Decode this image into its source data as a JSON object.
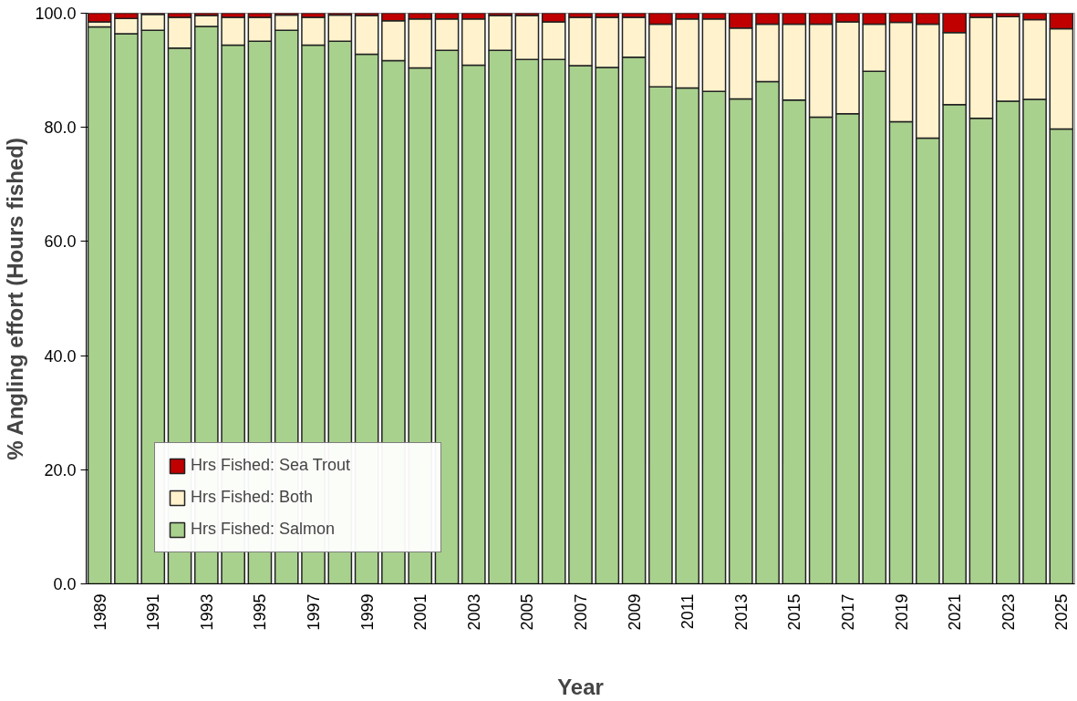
{
  "chart_data": {
    "type": "bar",
    "stacked": true,
    "xlabel": "Year",
    "ylabel": "% Angling effort (Hours fished)",
    "categories": [
      "1989",
      null,
      "1991",
      null,
      "1993",
      null,
      "1995",
      null,
      "1997",
      null,
      "1999",
      null,
      "2001",
      null,
      "2003",
      null,
      "2005",
      null,
      "2007",
      null,
      "2009",
      null,
      "2011",
      null,
      "2013",
      null,
      "2015",
      null,
      "2017",
      null,
      "2019",
      null,
      "2021",
      null,
      "2023",
      null,
      "2025"
    ],
    "series": [
      {
        "name": "Hrs Fished: Salmon",
        "color": "#a9d18e",
        "values": [
          97.6,
          96.4,
          97.0,
          93.9,
          97.7,
          94.4,
          95.1,
          97.0,
          94.4,
          95.1,
          92.8,
          91.7,
          90.4,
          93.5,
          90.9,
          93.5,
          91.9,
          91.9,
          90.8,
          90.5,
          92.3,
          87.1,
          86.9,
          86.3,
          85.0,
          88.0,
          84.8,
          81.8,
          82.4,
          89.8,
          81.0,
          78.1,
          84.0,
          81.6,
          84.6,
          84.9,
          79.7
        ]
      },
      {
        "name": "Hrs Fished: Both",
        "color": "#fff2cc",
        "values": [
          0.9,
          2.7,
          2.8,
          5.4,
          1.9,
          4.9,
          4.2,
          2.7,
          4.9,
          4.6,
          6.8,
          7.0,
          8.6,
          5.5,
          8.1,
          6.1,
          7.7,
          6.6,
          8.5,
          8.8,
          7.0,
          11.0,
          12.1,
          12.7,
          12.4,
          10.1,
          13.3,
          16.3,
          16.1,
          8.3,
          17.4,
          20.0,
          12.6,
          17.7,
          14.8,
          14.0,
          17.6
        ]
      },
      {
        "name": "Hrs Fished: Sea Trout",
        "color": "#c00000",
        "values": [
          1.5,
          0.9,
          0.2,
          0.7,
          0.4,
          0.7,
          0.7,
          0.3,
          0.7,
          0.3,
          0.4,
          1.3,
          1.0,
          1.0,
          1.0,
          0.4,
          0.4,
          1.5,
          0.7,
          0.7,
          0.7,
          1.9,
          1.0,
          1.0,
          2.6,
          1.9,
          1.9,
          1.9,
          1.5,
          1.9,
          1.6,
          1.9,
          3.4,
          0.7,
          0.6,
          1.1,
          2.7
        ]
      }
    ],
    "ylim": [
      0,
      100
    ],
    "yticks": [
      {
        "value": 0,
        "label": "0.0"
      },
      {
        "value": 20,
        "label": "20.0"
      },
      {
        "value": 40,
        "label": "40.0"
      },
      {
        "value": 60,
        "label": "60.0"
      },
      {
        "value": 80,
        "label": "80.0"
      },
      {
        "value": 100,
        "label": "100.0"
      }
    ],
    "legend": "bottom left"
  }
}
